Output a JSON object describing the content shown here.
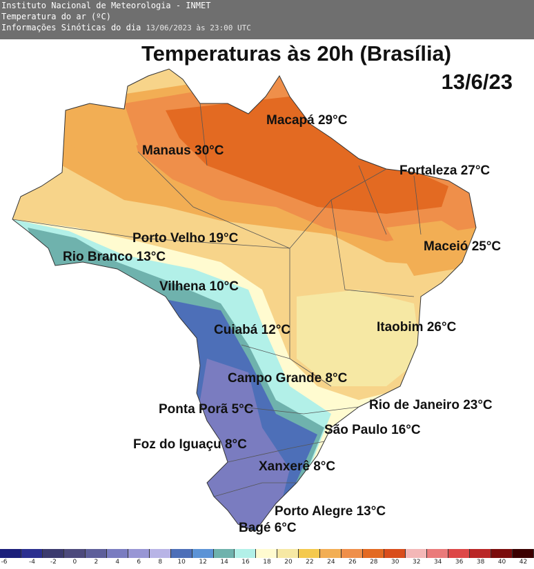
{
  "header": {
    "institution": "Instituto Nacional de Meteorologia - INMET",
    "variable": "Temperatura do ar (ºC)",
    "info_label": "Informações Sinóticas do dia",
    "datetime": "13/06/2023 às 23:00 UTC"
  },
  "map": {
    "title": "Temperaturas às 20h (Brasília)",
    "date": "13/6/23",
    "cities": [
      {
        "label": "Macapá 29°C"
      },
      {
        "label": "Manaus 30°C"
      },
      {
        "label": "Fortaleza 27°C"
      },
      {
        "label": "Porto Velho 19°C"
      },
      {
        "label": "Maceió 25°C"
      },
      {
        "label": "Rio Branco 13°C"
      },
      {
        "label": "Vilhena 10°C"
      },
      {
        "label": "Cuiabá 12°C"
      },
      {
        "label": "Itaobim 26°C"
      },
      {
        "label": "Campo Grande 8°C"
      },
      {
        "label": "Rio de Janeiro 23°C"
      },
      {
        "label": "Ponta Porã 5°C"
      },
      {
        "label": "São Paulo 16°C"
      },
      {
        "label": "Foz do Iguaçu 8°C"
      },
      {
        "label": "Xanxerê 8°C"
      },
      {
        "label": "Porto Alegre 13°C"
      },
      {
        "label": "Bagé 6°C"
      }
    ]
  },
  "legend": {
    "ticks": [
      "-6",
      "-4",
      "-2",
      "0",
      "2",
      "4",
      "6",
      "8",
      "10",
      "12",
      "14",
      "16",
      "18",
      "20",
      "22",
      "24",
      "26",
      "28",
      "30",
      "32",
      "34",
      "36",
      "38",
      "40",
      "42"
    ],
    "colors": [
      "#1b1f7a",
      "#2b2f8f",
      "#3b3a6e",
      "#4d4a7c",
      "#5e5f9a",
      "#7a7cc0",
      "#9896d4",
      "#b8b4e6",
      "#4d6fb8",
      "#5c93d6",
      "#6fb2ad",
      "#b2f0e8",
      "#fffbd0",
      "#f6e8a4",
      "#f4c94e",
      "#f2ae54",
      "#ef8f4a",
      "#e36a22",
      "#d94d1b",
      "#f3b7b7",
      "#ea7a7a",
      "#dd4747",
      "#b92626",
      "#7b0d0d",
      "#3b0000"
    ]
  }
}
